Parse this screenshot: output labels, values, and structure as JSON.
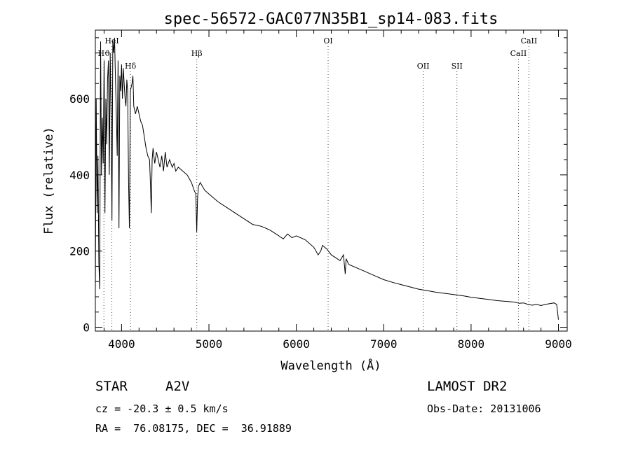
{
  "chart_data": {
    "type": "line",
    "title": "spec-56572-GAC077N35B1_sp14-083.fits",
    "xlabel": "Wavelength (Å)",
    "ylabel": "Flux (relative)",
    "xlim": [
      3700,
      9100
    ],
    "ylim": [
      -10,
      780
    ],
    "xticks": [
      4000,
      5000,
      6000,
      7000,
      8000,
      9000
    ],
    "yticks": [
      0,
      200,
      400,
      600
    ],
    "grid": false,
    "series": [
      {
        "x": [
          3700,
          3710,
          3720,
          3730,
          3740,
          3750,
          3760,
          3770,
          3780,
          3790,
          3800,
          3810,
          3820,
          3830,
          3840,
          3850,
          3860,
          3870,
          3880,
          3890,
          3900,
          3910,
          3920,
          3930,
          3940,
          3950,
          3960,
          3970,
          3980,
          3990,
          4000,
          4010,
          4020,
          4030,
          4040,
          4050,
          4060,
          4070,
          4080,
          4090,
          4100,
          4110,
          4120,
          4130,
          4140,
          4160,
          4180,
          4200,
          4220,
          4240,
          4260,
          4280,
          4300,
          4320,
          4330,
          4340,
          4350,
          4360,
          4380,
          4400,
          4420,
          4440,
          4460,
          4480,
          4500,
          4520,
          4550,
          4580,
          4600,
          4620,
          4650,
          4700,
          4750,
          4800,
          4830,
          4850,
          4860,
          4870,
          4880,
          4900,
          4950,
          5000,
          5100,
          5200,
          5300,
          5400,
          5500,
          5600,
          5700,
          5800,
          5850,
          5900,
          5950,
          6000,
          6100,
          6200,
          6250,
          6280,
          6300,
          6350,
          6400,
          6500,
          6540,
          6560,
          6570,
          6600,
          6700,
          6800,
          6900,
          7000,
          7100,
          7200,
          7300,
          7400,
          7500,
          7600,
          7700,
          7800,
          7900,
          8000,
          8100,
          8200,
          8300,
          8400,
          8500,
          8550,
          8600,
          8650,
          8700,
          8750,
          8800,
          8850,
          8900,
          8950,
          8980,
          9000
        ],
        "y": [
          100,
          600,
          300,
          450,
          170,
          100,
          750,
          400,
          550,
          430,
          700,
          300,
          600,
          480,
          650,
          700,
          400,
          720,
          560,
          280,
          750,
          720,
          760,
          650,
          560,
          450,
          700,
          260,
          660,
          620,
          690,
          600,
          680,
          640,
          600,
          580,
          650,
          620,
          380,
          260,
          620,
          630,
          640,
          660,
          580,
          560,
          580,
          560,
          540,
          530,
          500,
          470,
          450,
          440,
          380,
          300,
          440,
          470,
          430,
          460,
          440,
          420,
          450,
          410,
          460,
          420,
          440,
          420,
          430,
          410,
          420,
          410,
          400,
          380,
          360,
          350,
          250,
          340,
          370,
          380,
          360,
          350,
          330,
          315,
          300,
          285,
          270,
          265,
          255,
          240,
          232,
          245,
          235,
          240,
          230,
          210,
          190,
          200,
          215,
          205,
          190,
          175,
          190,
          140,
          180,
          165,
          155,
          145,
          135,
          125,
          118,
          112,
          106,
          100,
          96,
          92,
          89,
          86,
          83,
          79,
          76,
          73,
          70,
          68,
          66,
          63,
          64,
          60,
          58,
          60,
          57,
          60,
          62,
          64,
          60,
          20
        ]
      }
    ],
    "lines": [
      {
        "label": "Hδ",
        "x": 4102,
        "level": 1
      },
      {
        "label": "Hβ",
        "x": 4861,
        "level": 0
      },
      {
        "label": "HeI",
        "x": 3889,
        "level": -1
      },
      {
        "label": "Hϑ",
        "x": 3798,
        "level": 0
      },
      {
        "label": "OI",
        "x": 6364,
        "level": -1
      },
      {
        "label": "OII",
        "x": 7452,
        "level": 1
      },
      {
        "label": "SII",
        "x": 7838,
        "level": 1
      },
      {
        "label": "CaII",
        "x": 8542,
        "level": 0
      },
      {
        "label": "CaII",
        "x": 8662,
        "level": -1
      }
    ]
  },
  "info": {
    "class": "STAR",
    "subclass": "A2V",
    "survey": "LAMOST DR2",
    "cz": "cz = -20.3 ± 0.5 km/s",
    "obs_date": "Obs-Date: 20131006",
    "coords": "RA =  76.08175, DEC =  36.91889"
  }
}
